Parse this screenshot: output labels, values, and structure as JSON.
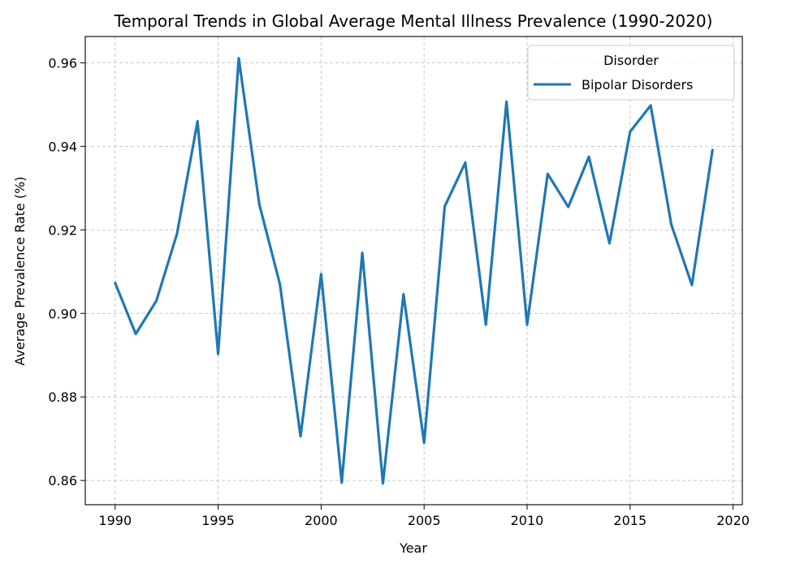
{
  "chart_data": {
    "type": "line",
    "title": "Temporal Trends in Global Average Mental Illness Prevalence (1990-2020)",
    "xlabel": "Year",
    "ylabel": "Average Prevalence Rate (%)",
    "xlim": [
      1988.55,
      2020.45
    ],
    "ylim": [
      0.8542,
      0.9663
    ],
    "x_ticks": [
      1990,
      1995,
      2000,
      2005,
      2010,
      2015,
      2020
    ],
    "y_ticks": [
      0.86,
      0.88,
      0.9,
      0.92,
      0.94,
      0.96
    ],
    "y_tick_labels": [
      "0.86",
      "0.88",
      "0.90",
      "0.92",
      "0.94",
      "0.96"
    ],
    "grid": true,
    "legend": {
      "title": "Disorder",
      "position": "upper right"
    },
    "series": [
      {
        "name": "Bipolar Disorders",
        "color": "#1f77b4",
        "x": [
          1990,
          1991,
          1992,
          1993,
          1994,
          1995,
          1996,
          1997,
          1998,
          1999,
          2000,
          2001,
          2002,
          2003,
          2004,
          2005,
          2006,
          2007,
          2008,
          2009,
          2010,
          2011,
          2012,
          2013,
          2014,
          2015,
          2016,
          2017,
          2018,
          2019
        ],
        "y": [
          0.9073,
          0.8951,
          0.903,
          0.919,
          0.946,
          0.8903,
          0.9611,
          0.9261,
          0.907,
          0.8706,
          0.9094,
          0.8595,
          0.9145,
          0.8593,
          0.9046,
          0.869,
          0.9256,
          0.9361,
          0.8973,
          0.9507,
          0.8973,
          0.9334,
          0.9255,
          0.9375,
          0.9168,
          0.9435,
          0.9498,
          0.9213,
          0.9068,
          0.9391
        ]
      }
    ]
  }
}
